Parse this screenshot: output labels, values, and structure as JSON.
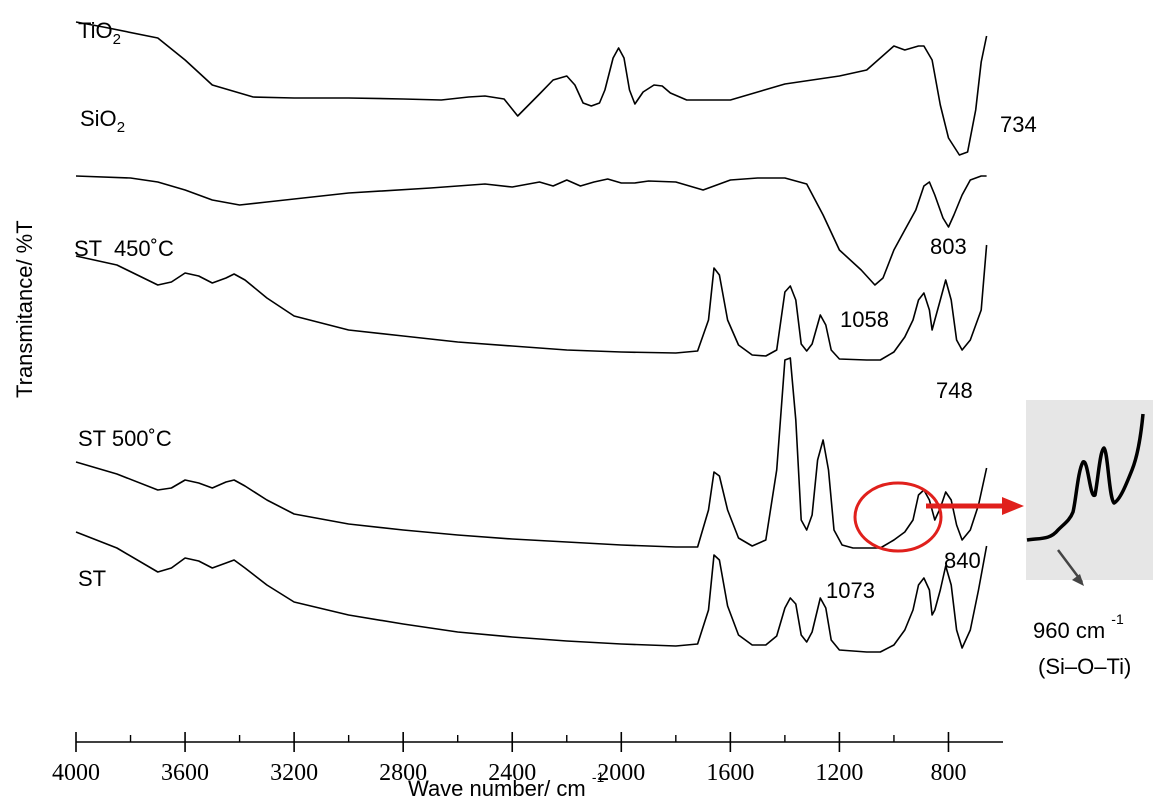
{
  "chart_data": {
    "type": "line",
    "xlabel": "Wave number/ cm",
    "xlabel_sup": "-1",
    "ylabel": "Transmitance/ %T",
    "xlim": [
      4000,
      600
    ],
    "x_ticks": [
      4000,
      3600,
      3200,
      2800,
      2400,
      2000,
      1600,
      1200,
      800
    ],
    "series": [
      {
        "name": "TiO2",
        "points": [
          [
            4000,
            22
          ],
          [
            3900,
            27
          ],
          [
            3700,
            38
          ],
          [
            3600,
            60
          ],
          [
            3500,
            85
          ],
          [
            3350,
            97
          ],
          [
            3200,
            98
          ],
          [
            3000,
            98
          ],
          [
            2800,
            99
          ],
          [
            2660,
            100
          ],
          [
            2560,
            97
          ],
          [
            2500,
            96
          ],
          [
            2430,
            99
          ],
          [
            2380,
            116
          ],
          [
            2300,
            94
          ],
          [
            2250,
            80
          ],
          [
            2200,
            76
          ],
          [
            2170,
            85
          ],
          [
            2140,
            103
          ],
          [
            2110,
            106
          ],
          [
            2080,
            103
          ],
          [
            2060,
            90
          ],
          [
            2030,
            58
          ],
          [
            2010,
            48
          ],
          [
            1990,
            58
          ],
          [
            1970,
            90
          ],
          [
            1950,
            104
          ],
          [
            1920,
            92
          ],
          [
            1880,
            85
          ],
          [
            1850,
            86
          ],
          [
            1820,
            93
          ],
          [
            1760,
            100
          ],
          [
            1600,
            100
          ],
          [
            1400,
            84
          ],
          [
            1200,
            76
          ],
          [
            1100,
            70
          ],
          [
            1000,
            46
          ],
          [
            960,
            50
          ],
          [
            910,
            46
          ],
          [
            890,
            46
          ],
          [
            860,
            60
          ],
          [
            830,
            105
          ],
          [
            800,
            138
          ],
          [
            760,
            155
          ],
          [
            730,
            152
          ],
          [
            700,
            110
          ],
          [
            680,
            62
          ],
          [
            660,
            36
          ]
        ]
      },
      {
        "name": "SiO2",
        "points": [
          [
            4000,
            176
          ],
          [
            3800,
            178
          ],
          [
            3700,
            182
          ],
          [
            3600,
            190
          ],
          [
            3500,
            200
          ],
          [
            3400,
            205
          ],
          [
            3300,
            202
          ],
          [
            3000,
            193
          ],
          [
            2700,
            188
          ],
          [
            2500,
            184
          ],
          [
            2400,
            187
          ],
          [
            2300,
            182
          ],
          [
            2250,
            186
          ],
          [
            2200,
            180
          ],
          [
            2150,
            186
          ],
          [
            2100,
            182
          ],
          [
            2050,
            179
          ],
          [
            2000,
            183
          ],
          [
            1950,
            183
          ],
          [
            1900,
            181
          ],
          [
            1800,
            182
          ],
          [
            1700,
            190
          ],
          [
            1600,
            180
          ],
          [
            1500,
            178
          ],
          [
            1400,
            178
          ],
          [
            1320,
            184
          ],
          [
            1260,
            215
          ],
          [
            1200,
            250
          ],
          [
            1120,
            270
          ],
          [
            1070,
            285
          ],
          [
            1040,
            278
          ],
          [
            1000,
            250
          ],
          [
            960,
            230
          ],
          [
            920,
            210
          ],
          [
            890,
            186
          ],
          [
            870,
            182
          ],
          [
            850,
            195
          ],
          [
            820,
            218
          ],
          [
            800,
            227
          ],
          [
            780,
            215
          ],
          [
            750,
            195
          ],
          [
            720,
            180
          ],
          [
            680,
            176
          ],
          [
            660,
            176
          ]
        ]
      },
      {
        "name": "ST  450˚C",
        "points": [
          [
            4000,
            256
          ],
          [
            3850,
            265
          ],
          [
            3700,
            285
          ],
          [
            3650,
            282
          ],
          [
            3600,
            273
          ],
          [
            3550,
            276
          ],
          [
            3500,
            283
          ],
          [
            3450,
            278
          ],
          [
            3420,
            274
          ],
          [
            3380,
            280
          ],
          [
            3300,
            298
          ],
          [
            3200,
            316
          ],
          [
            3000,
            330
          ],
          [
            2800,
            336
          ],
          [
            2600,
            342
          ],
          [
            2400,
            346
          ],
          [
            2200,
            350
          ],
          [
            2000,
            352
          ],
          [
            1800,
            353
          ],
          [
            1720,
            351
          ],
          [
            1680,
            320
          ],
          [
            1660,
            268
          ],
          [
            1640,
            275
          ],
          [
            1610,
            320
          ],
          [
            1570,
            345
          ],
          [
            1520,
            355
          ],
          [
            1470,
            356
          ],
          [
            1430,
            350
          ],
          [
            1400,
            292
          ],
          [
            1380,
            286
          ],
          [
            1360,
            300
          ],
          [
            1340,
            344
          ],
          [
            1320,
            351
          ],
          [
            1300,
            344
          ],
          [
            1270,
            315
          ],
          [
            1250,
            325
          ],
          [
            1230,
            350
          ],
          [
            1200,
            359
          ],
          [
            1100,
            360
          ],
          [
            1050,
            360
          ],
          [
            1000,
            352
          ],
          [
            960,
            337
          ],
          [
            930,
            320
          ],
          [
            910,
            300
          ],
          [
            890,
            293
          ],
          [
            870,
            310
          ],
          [
            860,
            330
          ],
          [
            850,
            320
          ],
          [
            830,
            300
          ],
          [
            810,
            280
          ],
          [
            790,
            300
          ],
          [
            770,
            340
          ],
          [
            750,
            350
          ],
          [
            720,
            340
          ],
          [
            680,
            310
          ],
          [
            660,
            245
          ]
        ]
      },
      {
        "name": "ST 500˚C",
        "points": [
          [
            4000,
            462
          ],
          [
            3850,
            474
          ],
          [
            3700,
            490
          ],
          [
            3650,
            488
          ],
          [
            3600,
            480
          ],
          [
            3550,
            483
          ],
          [
            3500,
            488
          ],
          [
            3450,
            482
          ],
          [
            3420,
            480
          ],
          [
            3380,
            486
          ],
          [
            3300,
            500
          ],
          [
            3200,
            514
          ],
          [
            3000,
            524
          ],
          [
            2800,
            530
          ],
          [
            2600,
            535
          ],
          [
            2400,
            539
          ],
          [
            2200,
            542
          ],
          [
            2000,
            545
          ],
          [
            1800,
            547
          ],
          [
            1720,
            547
          ],
          [
            1680,
            510
          ],
          [
            1660,
            472
          ],
          [
            1640,
            476
          ],
          [
            1610,
            510
          ],
          [
            1570,
            538
          ],
          [
            1520,
            546
          ],
          [
            1470,
            540
          ],
          [
            1430,
            470
          ],
          [
            1400,
            360
          ],
          [
            1380,
            358
          ],
          [
            1360,
            420
          ],
          [
            1340,
            520
          ],
          [
            1320,
            530
          ],
          [
            1300,
            515
          ],
          [
            1280,
            460
          ],
          [
            1260,
            440
          ],
          [
            1240,
            470
          ],
          [
            1220,
            530
          ],
          [
            1190,
            545
          ],
          [
            1150,
            548
          ],
          [
            1100,
            548
          ],
          [
            1050,
            548
          ],
          [
            1000,
            540
          ],
          [
            960,
            532
          ],
          [
            930,
            520
          ],
          [
            910,
            495
          ],
          [
            890,
            490
          ],
          [
            870,
            500
          ],
          [
            850,
            520
          ],
          [
            830,
            508
          ],
          [
            810,
            492
          ],
          [
            790,
            500
          ],
          [
            770,
            525
          ],
          [
            750,
            540
          ],
          [
            720,
            530
          ],
          [
            690,
            505
          ],
          [
            660,
            468
          ]
        ]
      },
      {
        "name": "ST",
        "points": [
          [
            4000,
            532
          ],
          [
            3850,
            548
          ],
          [
            3700,
            572
          ],
          [
            3650,
            568
          ],
          [
            3600,
            558
          ],
          [
            3550,
            561
          ],
          [
            3500,
            568
          ],
          [
            3450,
            563
          ],
          [
            3420,
            560
          ],
          [
            3380,
            568
          ],
          [
            3300,
            585
          ],
          [
            3200,
            602
          ],
          [
            3000,
            615
          ],
          [
            2800,
            624
          ],
          [
            2600,
            632
          ],
          [
            2400,
            637
          ],
          [
            2200,
            641
          ],
          [
            2000,
            644
          ],
          [
            1800,
            646
          ],
          [
            1720,
            644
          ],
          [
            1680,
            610
          ],
          [
            1660,
            555
          ],
          [
            1640,
            560
          ],
          [
            1610,
            606
          ],
          [
            1570,
            635
          ],
          [
            1520,
            645
          ],
          [
            1470,
            645
          ],
          [
            1430,
            636
          ],
          [
            1400,
            608
          ],
          [
            1380,
            598
          ],
          [
            1360,
            604
          ],
          [
            1340,
            635
          ],
          [
            1320,
            642
          ],
          [
            1300,
            632
          ],
          [
            1270,
            598
          ],
          [
            1250,
            608
          ],
          [
            1230,
            640
          ],
          [
            1200,
            650
          ],
          [
            1100,
            652
          ],
          [
            1050,
            652
          ],
          [
            1000,
            645
          ],
          [
            960,
            630
          ],
          [
            930,
            610
          ],
          [
            910,
            585
          ],
          [
            890,
            578
          ],
          [
            870,
            590
          ],
          [
            860,
            615
          ],
          [
            850,
            610
          ],
          [
            830,
            590
          ],
          [
            810,
            566
          ],
          [
            790,
            585
          ],
          [
            770,
            630
          ],
          [
            750,
            648
          ],
          [
            720,
            630
          ],
          [
            690,
            590
          ],
          [
            660,
            546
          ]
        ]
      }
    ],
    "annotations": [
      "734",
      "803",
      "1058",
      "748",
      "1073",
      "840"
    ],
    "inset": {
      "label": "960 cm",
      "label_sup": "-1",
      "sublabel": "(Si–O–Ti)"
    },
    "colors": {
      "trace": "#000000",
      "highlight": "#e0201c",
      "inset_bg": "#e6e6e6"
    }
  }
}
